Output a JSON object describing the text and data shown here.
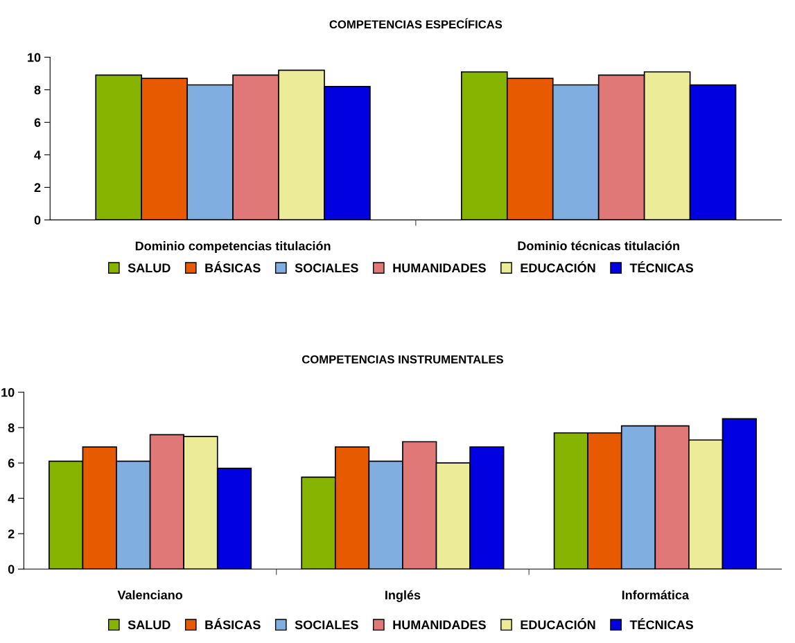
{
  "chart_data": [
    {
      "type": "bar",
      "title": "COMPETENCIAS ESPECÍFICAS",
      "categories": [
        "Dominio competencias titulación",
        "Dominio técnicas titulación"
      ],
      "ylim": [
        0,
        10
      ],
      "yticks": [
        0,
        2,
        4,
        6,
        8,
        10
      ],
      "grid": false,
      "legend": "bottom",
      "series": [
        {
          "name": "SALUD",
          "color": "#86b400",
          "values": [
            8.9,
            9.1
          ]
        },
        {
          "name": "BÁSICAS",
          "color": "#e85a00",
          "values": [
            8.7,
            8.7
          ]
        },
        {
          "name": "SOCIALES",
          "color": "#80aee0",
          "values": [
            8.3,
            8.3
          ]
        },
        {
          "name": "HUMANIDADES",
          "color": "#e07878",
          "values": [
            8.9,
            8.9
          ]
        },
        {
          "name": "EDUCACIÓN",
          "color": "#ecec98",
          "values": [
            9.2,
            9.1
          ]
        },
        {
          "name": "TÉCNICAS",
          "color": "#0000e0",
          "values": [
            8.2,
            8.3
          ]
        }
      ]
    },
    {
      "type": "bar",
      "title": "COMPETENCIAS INSTRUMENTALES",
      "categories": [
        "Valenciano",
        "Inglés",
        "Informática"
      ],
      "ylim": [
        0,
        10
      ],
      "yticks": [
        0,
        2,
        4,
        6,
        8,
        10
      ],
      "grid": false,
      "legend": "bottom",
      "series": [
        {
          "name": "SALUD",
          "color": "#86b400",
          "values": [
            6.1,
            5.2,
            7.7
          ]
        },
        {
          "name": "BÁSICAS",
          "color": "#e85a00",
          "values": [
            6.9,
            6.9,
            7.7
          ]
        },
        {
          "name": "SOCIALES",
          "color": "#80aee0",
          "values": [
            6.1,
            6.1,
            8.1
          ]
        },
        {
          "name": "HUMANIDADES",
          "color": "#e07878",
          "values": [
            7.6,
            7.2,
            8.1
          ]
        },
        {
          "name": "EDUCACIÓN",
          "color": "#ecec98",
          "values": [
            7.5,
            6.0,
            7.3
          ]
        },
        {
          "name": "TÉCNICAS",
          "color": "#0000e0",
          "values": [
            5.7,
            6.9,
            8.5
          ]
        }
      ]
    }
  ]
}
